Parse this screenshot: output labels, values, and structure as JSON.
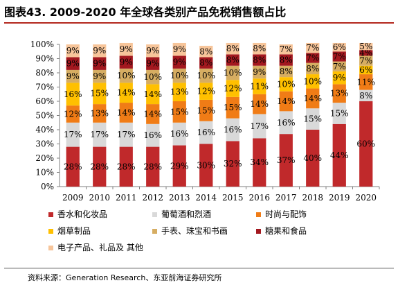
{
  "header": {
    "title": "图表43.  2009-2020 年全球各类别产品免税销售额占比"
  },
  "footer": {
    "source": "资料来源：Generation Research、东亚前海证券研究所"
  },
  "chart_data": {
    "type": "bar",
    "stacked": true,
    "title": "",
    "xlabel": "",
    "ylabel": "",
    "ylim": [
      0,
      100
    ],
    "y_ticks": [
      "0%",
      "10%",
      "20%",
      "30%",
      "40%",
      "50%",
      "60%",
      "70%",
      "80%",
      "90%",
      "100%"
    ],
    "categories": [
      "2009",
      "2010",
      "2011",
      "2012",
      "2013",
      "2014",
      "2015",
      "2016",
      "2017",
      "2018",
      "2019",
      "2020"
    ],
    "legend_position": "bottom",
    "series": [
      {
        "name": "香水和化妆品",
        "color": "#c0292b",
        "values": [
          28,
          28,
          28,
          28,
          29,
          30,
          32,
          34,
          37,
          40,
          44,
          60
        ]
      },
      {
        "name": "葡萄酒和烈酒",
        "color": "#d9d9d9",
        "values": [
          17,
          17,
          17,
          16,
          16,
          16,
          16,
          17,
          16,
          15,
          15,
          8
        ]
      },
      {
        "name": "时尚与配饰",
        "color": "#f07c16",
        "values": [
          12,
          13,
          14,
          14,
          15,
          15,
          15,
          14,
          14,
          14,
          13,
          11
        ]
      },
      {
        "name": "烟草制品",
        "color": "#ffc000",
        "values": [
          16,
          15,
          14,
          14,
          13,
          12,
          12,
          11,
          10,
          10,
          9,
          6
        ]
      },
      {
        "name": "手表、珠宝和书画",
        "color": "#d6ad62",
        "values": [
          9,
          9,
          10,
          10,
          10,
          10,
          10,
          9,
          8,
          8,
          7,
          7
        ]
      },
      {
        "name": "糖果和食品",
        "color": "#a3181f",
        "values": [
          9,
          9,
          9,
          9,
          9,
          8,
          8,
          8,
          8,
          7,
          7,
          4
        ]
      },
      {
        "name": "电子产品、礼品及 其他",
        "color": "#f7c59a",
        "values": [
          9,
          9,
          9,
          9,
          9,
          8,
          8,
          8,
          7,
          7,
          6,
          5
        ]
      }
    ]
  }
}
